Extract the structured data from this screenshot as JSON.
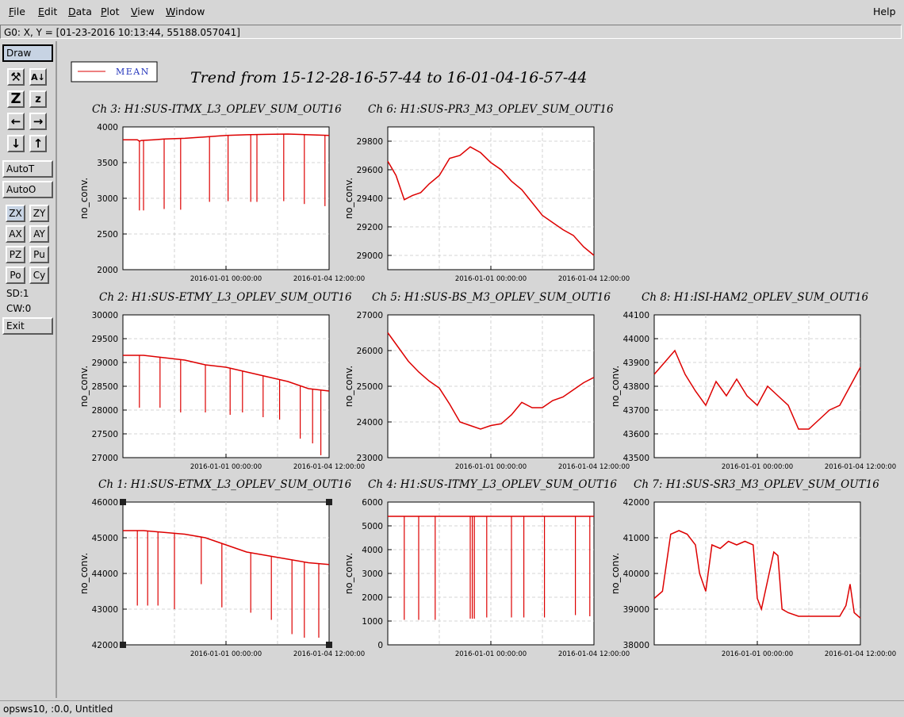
{
  "menu": {
    "items": [
      {
        "label": "File",
        "key": "F"
      },
      {
        "label": "Edit",
        "key": "E"
      },
      {
        "label": "Data",
        "key": "D"
      },
      {
        "label": "Plot",
        "key": "P"
      },
      {
        "label": "View",
        "key": "V"
      },
      {
        "label": "Window",
        "key": "W"
      }
    ],
    "help": "Help"
  },
  "coord_readout": "G0: X, Y = [01-23-2016 10:13:44, 55188.057041]",
  "toolbar": {
    "draw": "Draw",
    "icons": [
      "zoom-tool-icon",
      "auto-scale-icon",
      "zoom-in-icon",
      "zoom-out-icon",
      "pan-left-icon",
      "pan-right-icon",
      "pan-down-icon",
      "pan-up-icon"
    ],
    "autot": "AutoT",
    "autoo": "AutoO",
    "grid_buttons": [
      "ZX",
      "ZY",
      "AX",
      "AY",
      "PZ",
      "Pu",
      "Po",
      "Cy"
    ],
    "sd": "SD:1",
    "cw": "CW:0",
    "exit": "Exit"
  },
  "legend": {
    "label": "MEAN",
    "color": "#dd0000"
  },
  "main_title": "Trend from 15-12-28-16-57-44 to 16-01-04-16-57-44",
  "status_bar": "opsws10, :0.0, Untitled",
  "chart_data": [
    {
      "type": "line",
      "title": "Ch 3: H1:SUS-ITMX_L3_OPLEV_SUM_OUT16",
      "ylabel": "no_conv.",
      "x_ticks": [
        "2016-01-01 00:00:00",
        "2016-01-04 12:00:00"
      ],
      "ylim": [
        2000,
        4000
      ],
      "y_ticks": [
        2000,
        2500,
        3000,
        3500,
        4000
      ],
      "series": [
        {
          "color": "#dd0000",
          "x": [
            0,
            0.07,
            0.08,
            0.09,
            0.15,
            0.2,
            0.3,
            0.4,
            0.5,
            0.6,
            0.7,
            0.8,
            0.9,
            1
          ],
          "values": [
            3820,
            3820,
            3800,
            3810,
            3820,
            3830,
            3840,
            3860,
            3880,
            3890,
            3895,
            3900,
            3890,
            3880
          ]
        }
      ],
      "spikes": [
        [
          0.08,
          2830
        ],
        [
          0.1,
          2830
        ],
        [
          0.2,
          2850
        ],
        [
          0.28,
          2840
        ],
        [
          0.42,
          2950
        ],
        [
          0.51,
          2960
        ],
        [
          0.62,
          2950
        ],
        [
          0.65,
          2950
        ],
        [
          0.78,
          2960
        ],
        [
          0.88,
          2920
        ],
        [
          0.98,
          2890
        ]
      ]
    },
    {
      "type": "line",
      "title": "Ch 6: H1:SUS-PR3_M3_OPLEV_SUM_OUT16",
      "ylabel": "no_conv.",
      "x_ticks": [
        "2016-01-01 00:00:00",
        "2016-01-04 12:00:00"
      ],
      "ylim": [
        28900,
        29900
      ],
      "y_ticks": [
        29000,
        29200,
        29400,
        29600,
        29800
      ],
      "series": [
        {
          "color": "#dd0000",
          "x": [
            0,
            0.04,
            0.08,
            0.12,
            0.16,
            0.2,
            0.25,
            0.3,
            0.35,
            0.4,
            0.45,
            0.5,
            0.55,
            0.6,
            0.65,
            0.7,
            0.75,
            0.8,
            0.85,
            0.9,
            0.95,
            1
          ],
          "values": [
            29660,
            29560,
            29390,
            29420,
            29440,
            29500,
            29560,
            29680,
            29700,
            29760,
            29720,
            29650,
            29600,
            29520,
            29460,
            29370,
            29280,
            29230,
            29180,
            29140,
            29060,
            29000
          ]
        }
      ],
      "spikes": []
    },
    {
      "type": "line",
      "title": "Ch 2: H1:SUS-ETMY_L3_OPLEV_SUM_OUT16",
      "ylabel": "no_conv.",
      "x_ticks": [
        "2016-01-01 00:00:00",
        "2016-01-04 12:00:00"
      ],
      "ylim": [
        27000,
        30000
      ],
      "y_ticks": [
        27000,
        27500,
        28000,
        28500,
        29000,
        29500,
        30000
      ],
      "series": [
        {
          "color": "#dd0000",
          "x": [
            0,
            0.1,
            0.2,
            0.3,
            0.4,
            0.5,
            0.6,
            0.7,
            0.8,
            0.9,
            1
          ],
          "values": [
            29150,
            29150,
            29100,
            29050,
            28950,
            28900,
            28800,
            28700,
            28600,
            28450,
            28400
          ]
        }
      ],
      "spikes": [
        [
          0.08,
          28050
        ],
        [
          0.18,
          28050
        ],
        [
          0.28,
          27950
        ],
        [
          0.4,
          27950
        ],
        [
          0.52,
          27900
        ],
        [
          0.58,
          27950
        ],
        [
          0.68,
          27850
        ],
        [
          0.76,
          27800
        ],
        [
          0.86,
          27400
        ],
        [
          0.92,
          27300
        ],
        [
          0.96,
          27050
        ]
      ]
    },
    {
      "type": "line",
      "title": "Ch 5: H1:SUS-BS_M3_OPLEV_SUM_OUT16",
      "ylabel": "no_conv.",
      "x_ticks": [
        "2016-01-01 00:00:00",
        "2016-01-04 12:00:00"
      ],
      "ylim": [
        23000,
        27000
      ],
      "y_ticks": [
        23000,
        24000,
        25000,
        26000,
        27000
      ],
      "series": [
        {
          "color": "#dd0000",
          "x": [
            0,
            0.05,
            0.1,
            0.15,
            0.2,
            0.25,
            0.3,
            0.35,
            0.4,
            0.45,
            0.5,
            0.55,
            0.6,
            0.65,
            0.7,
            0.75,
            0.8,
            0.85,
            0.9,
            0.95,
            1
          ],
          "values": [
            26500,
            26100,
            25700,
            25400,
            25150,
            24950,
            24500,
            24000,
            23900,
            23800,
            23900,
            23950,
            24200,
            24550,
            24400,
            24400,
            24600,
            24700,
            24900,
            25100,
            25250
          ]
        }
      ],
      "spikes": []
    },
    {
      "type": "line",
      "title": "Ch 8: H1:ISI-HAM2_OPLEV_SUM_OUT16",
      "ylabel": "no_conv.",
      "x_ticks": [
        "2016-01-01 00:00:00",
        "2016-01-04 12:00:00"
      ],
      "ylim": [
        43500,
        44100
      ],
      "y_ticks": [
        43500,
        43600,
        43700,
        43800,
        43900,
        44000,
        44100
      ],
      "series": [
        {
          "color": "#dd0000",
          "x": [
            0,
            0.05,
            0.1,
            0.15,
            0.2,
            0.25,
            0.3,
            0.35,
            0.4,
            0.45,
            0.5,
            0.55,
            0.6,
            0.65,
            0.7,
            0.75,
            0.8,
            0.85,
            0.9,
            0.95,
            1
          ],
          "values": [
            43850,
            43900,
            43950,
            43850,
            43780,
            43720,
            43820,
            43760,
            43830,
            43760,
            43720,
            43800,
            43760,
            43720,
            43620,
            43620,
            43660,
            43700,
            43720,
            43800,
            43880
          ]
        }
      ],
      "spikes": []
    },
    {
      "type": "line",
      "title": "Ch 1: H1:SUS-ETMX_L3_OPLEV_SUM_OUT16",
      "ylabel": "no_conv.",
      "x_ticks": [
        "2016-01-01 00:00:00",
        "2016-01-04 12:00:00"
      ],
      "ylim": [
        42000,
        46000
      ],
      "y_ticks": [
        42000,
        43000,
        44000,
        45000,
        46000
      ],
      "series": [
        {
          "color": "#dd0000",
          "x": [
            0,
            0.1,
            0.2,
            0.3,
            0.4,
            0.5,
            0.6,
            0.7,
            0.8,
            0.9,
            1
          ],
          "values": [
            45200,
            45200,
            45150,
            45100,
            45000,
            44800,
            44600,
            44500,
            44400,
            44300,
            44250
          ]
        }
      ],
      "spikes": [
        [
          0.07,
          43100
        ],
        [
          0.12,
          43100
        ],
        [
          0.17,
          43100
        ],
        [
          0.25,
          43000
        ],
        [
          0.38,
          43700
        ],
        [
          0.48,
          43050
        ],
        [
          0.62,
          42900
        ],
        [
          0.72,
          42700
        ],
        [
          0.82,
          42300
        ],
        [
          0.88,
          42200
        ],
        [
          0.95,
          42200
        ]
      ]
    },
    {
      "type": "line",
      "title": "Ch 4: H1:SUS-ITMY_L3_OPLEV_SUM_OUT16",
      "ylabel": "no_conv.",
      "x_ticks": [
        "2016-01-01 00:00:00",
        "2016-01-04 12:00:00"
      ],
      "ylim": [
        0,
        6000
      ],
      "y_ticks": [
        0,
        1000,
        2000,
        3000,
        4000,
        5000,
        6000
      ],
      "series": [
        {
          "color": "#dd0000",
          "x": [
            0,
            0.2,
            0.4,
            0.6,
            0.8,
            1
          ],
          "values": [
            5400,
            5400,
            5400,
            5400,
            5400,
            5400
          ]
        }
      ],
      "spikes": [
        [
          0.08,
          1050
        ],
        [
          0.15,
          1050
        ],
        [
          0.23,
          1050
        ],
        [
          0.4,
          1100
        ],
        [
          0.41,
          1100
        ],
        [
          0.42,
          1100
        ],
        [
          0.48,
          1150
        ],
        [
          0.6,
          1150
        ],
        [
          0.66,
          1150
        ],
        [
          0.76,
          1150
        ],
        [
          0.91,
          1250
        ],
        [
          0.98,
          1200
        ]
      ]
    },
    {
      "type": "line",
      "title": "Ch 7: H1:SUS-SR3_M3_OPLEV_SUM_OUT16",
      "ylabel": "no_conv.",
      "x_ticks": [
        "2016-01-01 00:00:00",
        "2016-01-04 12:00:00"
      ],
      "ylim": [
        38000,
        42000
      ],
      "y_ticks": [
        38000,
        39000,
        40000,
        41000,
        42000
      ],
      "series": [
        {
          "color": "#dd0000",
          "x": [
            0,
            0.04,
            0.08,
            0.12,
            0.16,
            0.2,
            0.22,
            0.25,
            0.28,
            0.32,
            0.36,
            0.4,
            0.44,
            0.48,
            0.5,
            0.52,
            0.55,
            0.58,
            0.6,
            0.62,
            0.65,
            0.7,
            0.75,
            0.8,
            0.85,
            0.9,
            0.93,
            0.95,
            0.97,
            1
          ],
          "values": [
            39300,
            39500,
            41100,
            41200,
            41100,
            40800,
            40000,
            39500,
            40800,
            40700,
            40900,
            40800,
            40900,
            40800,
            39300,
            39000,
            39800,
            40600,
            40500,
            39000,
            38900,
            38800,
            38800,
            38800,
            38800,
            38800,
            39100,
            39700,
            38900,
            38750
          ]
        }
      ],
      "spikes": []
    }
  ]
}
